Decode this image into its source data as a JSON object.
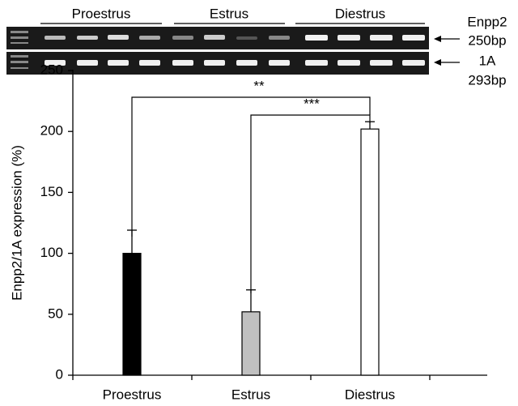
{
  "gel": {
    "groups": [
      "Proestrus",
      "Estrus",
      "Diestrus"
    ],
    "labels": [
      "Enpp2",
      "250bp",
      "1A",
      "293bp"
    ]
  },
  "chart_data": {
    "type": "bar",
    "ylabel": "Enpp2/1A expression (%)",
    "categories": [
      "Proestrus",
      "Estrus",
      "Diestrus"
    ],
    "values": [
      100,
      52,
      202
    ],
    "errors": [
      19,
      18,
      6
    ],
    "colors": [
      "#000000",
      "#c0c0c0",
      "#ffffff"
    ],
    "ylim": [
      0,
      250
    ],
    "yticks": [
      0,
      50,
      100,
      150,
      200,
      250
    ],
    "annotations": [
      "**",
      "***"
    ]
  }
}
